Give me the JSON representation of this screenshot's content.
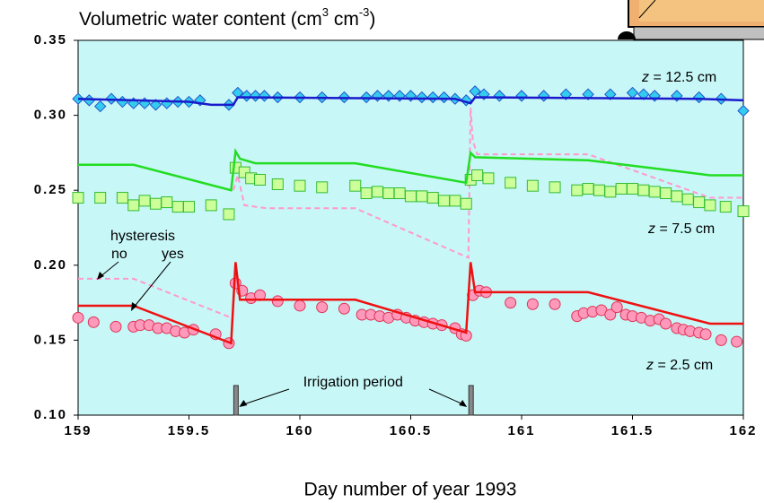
{
  "chart_data": {
    "type": "scatter-line",
    "title": [
      "Volumetric water content (cm",
      "3",
      " cm",
      "-3",
      ")"
    ],
    "x_label": "Day number of year 1993",
    "xlim": [
      159,
      162
    ],
    "xticks": [
      159,
      159.5,
      160,
      160.5,
      161,
      161.5,
      162
    ],
    "ylim": [
      0.1,
      0.35
    ],
    "yticks": [
      {
        "value": 0.1,
        "label": "0.10"
      },
      0.15,
      {
        "value": 0.2,
        "label": "0.20"
      },
      0.25,
      {
        "value": 0.3,
        "label": "0.30"
      },
      0.35
    ],
    "background": "#c8f7f7",
    "series": [
      {
        "style": "markers",
        "marker": "diamond",
        "color": "#33ccee",
        "edge": "#2255cc",
        "x": [
          159.0,
          159.05,
          159.1,
          159.15,
          159.2,
          159.25,
          159.3,
          159.35,
          159.4,
          159.45,
          159.5,
          159.55,
          159.68,
          159.72,
          159.76,
          159.8,
          159.84,
          159.9,
          160.0,
          160.1,
          160.2,
          160.3,
          160.35,
          160.4,
          160.45,
          160.5,
          160.55,
          160.6,
          160.65,
          160.7,
          160.75,
          160.79,
          160.83,
          160.9,
          161.0,
          161.1,
          161.2,
          161.3,
          161.4,
          161.5,
          161.55,
          161.6,
          161.7,
          161.8,
          161.9,
          162.0
        ],
        "values": [
          0.311,
          0.31,
          0.306,
          0.311,
          0.309,
          0.308,
          0.308,
          0.307,
          0.308,
          0.309,
          0.309,
          0.31,
          0.307,
          0.315,
          0.313,
          0.313,
          0.313,
          0.312,
          0.312,
          0.312,
          0.312,
          0.312,
          0.313,
          0.313,
          0.313,
          0.313,
          0.312,
          0.312,
          0.312,
          0.311,
          0.31,
          0.316,
          0.314,
          0.313,
          0.313,
          0.313,
          0.314,
          0.314,
          0.314,
          0.315,
          0.314,
          0.313,
          0.313,
          0.312,
          0.311,
          0.303
        ]
      },
      {
        "style": "line",
        "color": "#1a1acc",
        "x": [
          159,
          159.5,
          159.6,
          159.7,
          159.72,
          160.7,
          160.77,
          160.79,
          161.8,
          162
        ],
        "values": [
          0.311,
          0.309,
          0.307,
          0.307,
          0.312,
          0.311,
          0.308,
          0.312,
          0.311,
          0.31
        ]
      },
      {
        "style": "markers",
        "marker": "square",
        "color": "#ccff99",
        "edge": "#33bb33",
        "x": [
          159.0,
          159.1,
          159.2,
          159.25,
          159.3,
          159.35,
          159.4,
          159.45,
          159.5,
          159.6,
          159.68,
          159.71,
          159.75,
          159.78,
          159.82,
          159.9,
          160.0,
          160.1,
          160.25,
          160.3,
          160.35,
          160.4,
          160.45,
          160.5,
          160.55,
          160.6,
          160.65,
          160.7,
          160.75,
          160.77,
          160.8,
          160.85,
          160.95,
          161.05,
          161.15,
          161.25,
          161.3,
          161.35,
          161.4,
          161.45,
          161.5,
          161.55,
          161.6,
          161.65,
          161.7,
          161.75,
          161.8,
          161.85,
          161.92,
          162.0
        ],
        "values": [
          0.245,
          0.245,
          0.245,
          0.24,
          0.243,
          0.241,
          0.242,
          0.239,
          0.239,
          0.24,
          0.234,
          0.265,
          0.262,
          0.258,
          0.257,
          0.254,
          0.253,
          0.252,
          0.253,
          0.248,
          0.249,
          0.248,
          0.248,
          0.246,
          0.246,
          0.245,
          0.243,
          0.243,
          0.241,
          0.257,
          0.26,
          0.258,
          0.255,
          0.253,
          0.252,
          0.25,
          0.251,
          0.25,
          0.249,
          0.251,
          0.251,
          0.25,
          0.249,
          0.248,
          0.246,
          0.244,
          0.242,
          0.24,
          0.239,
          0.236
        ]
      },
      {
        "style": "line",
        "color": "#22dd22",
        "x": [
          159,
          159.25,
          159.69,
          159.71,
          159.73,
          159.8,
          160.25,
          160.75,
          160.77,
          160.79,
          161.3,
          161.85,
          162
        ],
        "values": [
          0.267,
          0.267,
          0.25,
          0.276,
          0.271,
          0.268,
          0.268,
          0.255,
          0.275,
          0.272,
          0.27,
          0.26,
          0.26
        ]
      },
      {
        "style": "dashed",
        "color": "#ff99cc",
        "x": [
          159.7,
          159.72,
          159.75,
          159.85,
          160.25,
          160.76,
          160.77,
          160.78,
          160.8,
          161.3,
          161.85,
          162
        ],
        "values": [
          0.25,
          0.26,
          0.24,
          0.238,
          0.238,
          0.205,
          0.305,
          0.283,
          0.274,
          0.274,
          0.245,
          0.245
        ]
      },
      {
        "style": "markers",
        "marker": "circle",
        "color": "#ff99bb",
        "edge": "#dd3355",
        "x": [
          159.0,
          159.07,
          159.17,
          159.25,
          159.28,
          159.32,
          159.36,
          159.4,
          159.44,
          159.48,
          159.52,
          159.62,
          159.68,
          159.71,
          159.74,
          159.78,
          159.82,
          159.9,
          160.0,
          160.1,
          160.2,
          160.28,
          160.32,
          160.36,
          160.4,
          160.44,
          160.48,
          160.52,
          160.56,
          160.6,
          160.64,
          160.7,
          160.73,
          160.75,
          160.78,
          160.81,
          160.84,
          160.95,
          161.05,
          161.15,
          161.25,
          161.28,
          161.32,
          161.36,
          161.4,
          161.43,
          161.47,
          161.5,
          161.54,
          161.58,
          161.62,
          161.65,
          161.7,
          161.73,
          161.76,
          161.8,
          161.83,
          161.9,
          161.97
        ],
        "values": [
          0.165,
          0.162,
          0.159,
          0.159,
          0.16,
          0.16,
          0.158,
          0.158,
          0.156,
          0.155,
          0.157,
          0.154,
          0.148,
          0.188,
          0.183,
          0.178,
          0.18,
          0.176,
          0.173,
          0.172,
          0.171,
          0.167,
          0.167,
          0.166,
          0.165,
          0.167,
          0.165,
          0.163,
          0.162,
          0.161,
          0.16,
          0.158,
          0.154,
          0.153,
          0.18,
          0.183,
          0.182,
          0.175,
          0.174,
          0.174,
          0.166,
          0.168,
          0.169,
          0.17,
          0.167,
          0.172,
          0.167,
          0.166,
          0.165,
          0.163,
          0.164,
          0.161,
          0.158,
          0.157,
          0.156,
          0.155,
          0.154,
          0.15,
          0.149
        ]
      },
      {
        "style": "line",
        "color": "#ee1111",
        "x": [
          159,
          159.25,
          159.69,
          159.71,
          159.73,
          160.25,
          160.75,
          160.77,
          160.79,
          161.3,
          161.85,
          162
        ],
        "values": [
          0.173,
          0.173,
          0.148,
          0.202,
          0.177,
          0.177,
          0.155,
          0.202,
          0.182,
          0.182,
          0.161,
          0.161
        ]
      },
      {
        "style": "dashed",
        "color": "#ff99cc",
        "x": [
          159,
          159.25,
          159.69
        ],
        "values": [
          0.191,
          0.191,
          0.165
        ]
      }
    ],
    "irrigation": {
      "label": "Irrigation period",
      "x": [
        159.71,
        160.77
      ]
    },
    "depth_labels": [
      {
        "var": "z",
        "text": " = 12.5 cm"
      },
      {
        "var": "z",
        "text": " = 7.5 cm"
      },
      {
        "var": "z",
        "text": " = 2.5 cm"
      }
    ],
    "hysteresis": {
      "label": "hysteresis",
      "no": "no",
      "yes": "yes"
    }
  }
}
